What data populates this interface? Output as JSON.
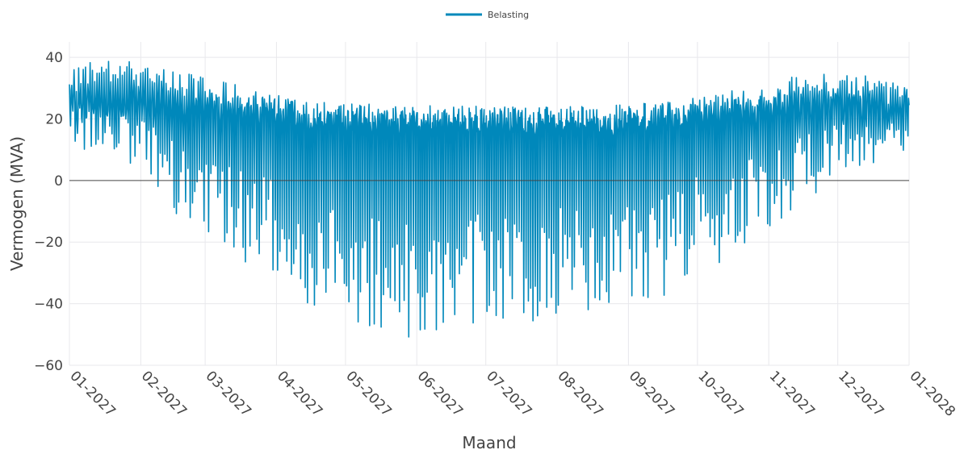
{
  "chart_data": {
    "type": "line",
    "title": "",
    "xlabel": "Maand",
    "ylabel": "Vermogen (MVA)",
    "ylim": [
      -60,
      45
    ],
    "xlim": [
      "2027-01-01",
      "2028-01-01"
    ],
    "yticks": [
      40,
      20,
      0,
      -20,
      -40,
      -60
    ],
    "ytick_labels": [
      "40",
      "20",
      "0",
      "−20",
      "−40",
      "−60"
    ],
    "xticks": [
      "2027-01-01",
      "2027-02-01",
      "2027-03-01",
      "2027-04-01",
      "2027-05-01",
      "2027-06-01",
      "2027-07-01",
      "2027-08-01",
      "2027-09-01",
      "2027-10-01",
      "2027-11-01",
      "2027-12-01",
      "2028-01-01"
    ],
    "xtick_labels": [
      "01-2027",
      "02-2027",
      "03-2027",
      "04-2027",
      "05-2027",
      "06-2027",
      "07-2027",
      "08-2027",
      "09-2027",
      "10-2027",
      "11-2027",
      "12-2027",
      "01-2028"
    ],
    "grid": true,
    "legend_position": "top-center",
    "zero_line": true,
    "series": [
      {
        "name": "Belasting",
        "color": "#0088BB",
        "x": [
          "2027-01-01",
          "2027-01-15",
          "2027-02-01",
          "2027-02-15",
          "2027-03-01",
          "2027-03-15",
          "2027-04-01",
          "2027-04-15",
          "2027-05-01",
          "2027-05-15",
          "2027-06-01",
          "2027-06-15",
          "2027-07-01",
          "2027-07-15",
          "2027-08-01",
          "2027-08-15",
          "2027-09-01",
          "2027-09-15",
          "2027-10-01",
          "2027-10-15",
          "2027-11-01",
          "2027-11-15",
          "2027-12-01",
          "2027-12-15",
          "2028-01-01"
        ],
        "daily_max": [
          36,
          40,
          38,
          36,
          34,
          31,
          28,
          26,
          24,
          23,
          22,
          24,
          23,
          22,
          21,
          21,
          23,
          25,
          27,
          29,
          31,
          35,
          35,
          34,
          31
        ],
        "daily_min": [
          10,
          8,
          2,
          -10,
          -20,
          -25,
          -35,
          -40,
          -45,
          -50,
          -54,
          -52,
          -48,
          -46,
          -45,
          -43,
          -41,
          -38,
          -30,
          -25,
          -15,
          -8,
          0,
          5,
          8
        ]
      }
    ]
  }
}
